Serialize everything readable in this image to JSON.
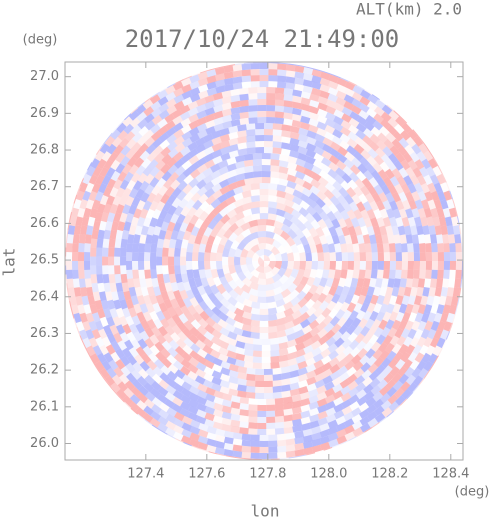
{
  "chart_data": {
    "type": "radar-ppi",
    "title": "2017/10/24 21:49:00",
    "subtitle": "ALT(km) 2.0",
    "x_label": "lon",
    "y_label": "lat",
    "x_unit": "(deg)",
    "y_unit": "(deg)",
    "xlim": [
      127.135,
      128.44
    ],
    "ylim": [
      25.955,
      27.04
    ],
    "xticks": [
      127.4,
      127.6,
      127.8,
      {
        "value": 128.0,
        "label": "128.0"
      },
      128.2,
      128.4
    ],
    "yticks": [
      {
        "value": 26.0,
        "label": "26.0"
      },
      26.1,
      26.2,
      26.3,
      26.4,
      26.5,
      26.6,
      26.7,
      26.8,
      26.9,
      {
        "value": 27.0,
        "label": "27.0"
      }
    ]
  }
}
